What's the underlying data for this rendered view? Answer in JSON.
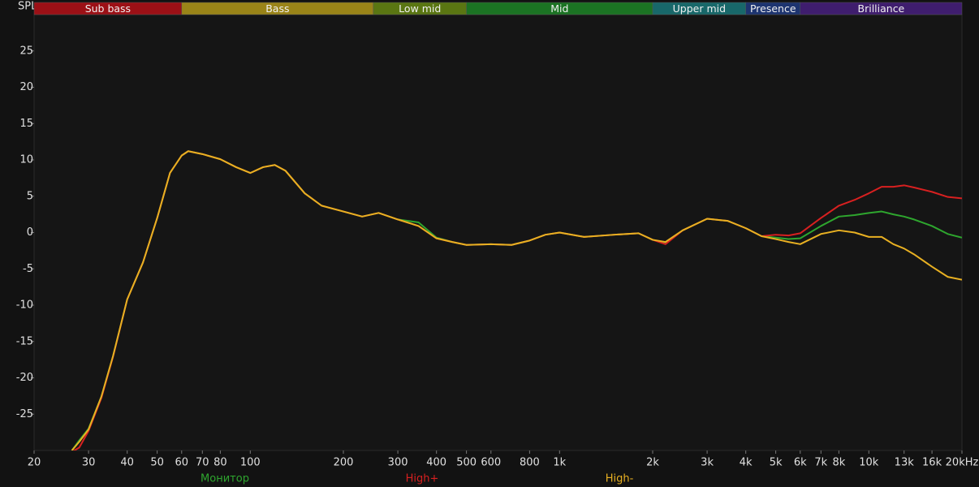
{
  "chart_data": {
    "type": "line",
    "y_label": "SPL",
    "log_x": true,
    "xlim": [
      20,
      20000
    ],
    "ylim": [
      -30,
      30
    ],
    "xticks": [
      20,
      30,
      40,
      50,
      60,
      70,
      80,
      100,
      200,
      300,
      400,
      500,
      600,
      800,
      {
        "value": 1000,
        "label": "1k"
      },
      {
        "value": 2000,
        "label": "2k"
      },
      {
        "value": 3000,
        "label": "3k"
      },
      {
        "value": 4000,
        "label": "4k"
      },
      {
        "value": 5000,
        "label": "5k"
      },
      {
        "value": 6000,
        "label": "6k"
      },
      {
        "value": 7000,
        "label": "7k"
      },
      {
        "value": 8000,
        "label": "8k"
      },
      {
        "value": 10000,
        "label": "10k"
      },
      {
        "value": 13000,
        "label": "13k"
      },
      {
        "value": 16000,
        "label": "16k"
      },
      {
        "value": 20000,
        "label": "20kHz"
      }
    ],
    "yticks": [
      25,
      20,
      15,
      10,
      5,
      0,
      -5,
      -10,
      -15,
      -20,
      -25
    ],
    "bands": [
      {
        "name": "Sub bass",
        "from": 20,
        "to": 60,
        "color": "#9c1016"
      },
      {
        "name": "Bass",
        "from": 60,
        "to": 250,
        "color": "#9a8418"
      },
      {
        "name": "Low mid",
        "from": 250,
        "to": 500,
        "color": "#5a7612"
      },
      {
        "name": "Mid",
        "from": 500,
        "to": 2000,
        "color": "#1b7323"
      },
      {
        "name": "Upper mid",
        "from": 2000,
        "to": 4000,
        "color": "#18686a"
      },
      {
        "name": "Presence",
        "from": 4000,
        "to": 6000,
        "color": "#1d3470"
      },
      {
        "name": "Brilliance",
        "from": 6000,
        "to": 20000,
        "color": "#3f1d6e"
      }
    ],
    "x": [
      26.5,
      28,
      30,
      33,
      36,
      40,
      45,
      50,
      55,
      60,
      63,
      70,
      80,
      90,
      100,
      110,
      120,
      130,
      150,
      170,
      200,
      230,
      260,
      300,
      350,
      400,
      450,
      500,
      600,
      700,
      800,
      900,
      1000,
      1200,
      1500,
      1800,
      2000,
      2200,
      2500,
      3000,
      3500,
      4000,
      4500,
      5000,
      5500,
      6000,
      7000,
      8000,
      9000,
      10000,
      11000,
      12000,
      13000,
      14000,
      16000,
      18000,
      20000
    ],
    "series": [
      {
        "name": "Монитор",
        "color": "#2ea62e",
        "values": [
          -30,
          -28.6,
          -27,
          -22.6,
          -17,
          -9.2,
          -4.1,
          2,
          8.2,
          10.6,
          11.2,
          10.8,
          10.1,
          9.0,
          8.2,
          9.0,
          9.3,
          8.5,
          5.4,
          3.7,
          2.9,
          2.2,
          2.7,
          1.8,
          1.4,
          -0.7,
          -1.3,
          -1.7,
          -1.6,
          -1.7,
          -1.1,
          -0.3,
          0,
          -0.6,
          -0.3,
          -0.1,
          -1.0,
          -1.4,
          0.3,
          1.9,
          1.6,
          0.6,
          -0.5,
          -0.7,
          -0.9,
          -0.8,
          0.9,
          2.2,
          2.4,
          2.7,
          2.9,
          2.5,
          2.2,
          1.8,
          0.9,
          -0.2,
          -0.7
        ]
      },
      {
        "name": "High+",
        "color": "#d82020",
        "values": [
          -30.2,
          -29.6,
          -27.3,
          -22.8,
          -17.1,
          -9.2,
          -4.1,
          2,
          8.2,
          10.6,
          11.2,
          10.8,
          10.1,
          9.0,
          8.2,
          9.0,
          9.3,
          8.5,
          5.4,
          3.7,
          2.9,
          2.2,
          2.7,
          1.8,
          0.9,
          -0.8,
          -1.3,
          -1.7,
          -1.6,
          -1.7,
          -1.1,
          -0.3,
          0,
          -0.6,
          -0.3,
          -0.1,
          -1.0,
          -1.6,
          0.3,
          1.9,
          1.6,
          0.6,
          -0.5,
          -0.3,
          -0.4,
          -0.1,
          2.0,
          3.7,
          4.5,
          5.4,
          6.3,
          6.3,
          6.5,
          6.2,
          5.6,
          4.9,
          4.7
        ]
      },
      {
        "name": "High-",
        "color": "#e8b022",
        "values": [
          -30,
          -28.8,
          -27.1,
          -22.6,
          -17,
          -9.2,
          -4.1,
          2,
          8.2,
          10.6,
          11.2,
          10.8,
          10.1,
          9.0,
          8.2,
          9.0,
          9.3,
          8.5,
          5.4,
          3.7,
          2.9,
          2.2,
          2.7,
          1.8,
          0.9,
          -0.8,
          -1.3,
          -1.7,
          -1.6,
          -1.7,
          -1.1,
          -0.3,
          0,
          -0.6,
          -0.3,
          -0.1,
          -1.0,
          -1.3,
          0.3,
          1.9,
          1.6,
          0.6,
          -0.5,
          -0.9,
          -1.3,
          -1.6,
          -0.2,
          0.3,
          0,
          -0.6,
          -0.6,
          -1.6,
          -2.2,
          -3.0,
          -4.7,
          -6.1,
          -6.5
        ]
      }
    ]
  }
}
